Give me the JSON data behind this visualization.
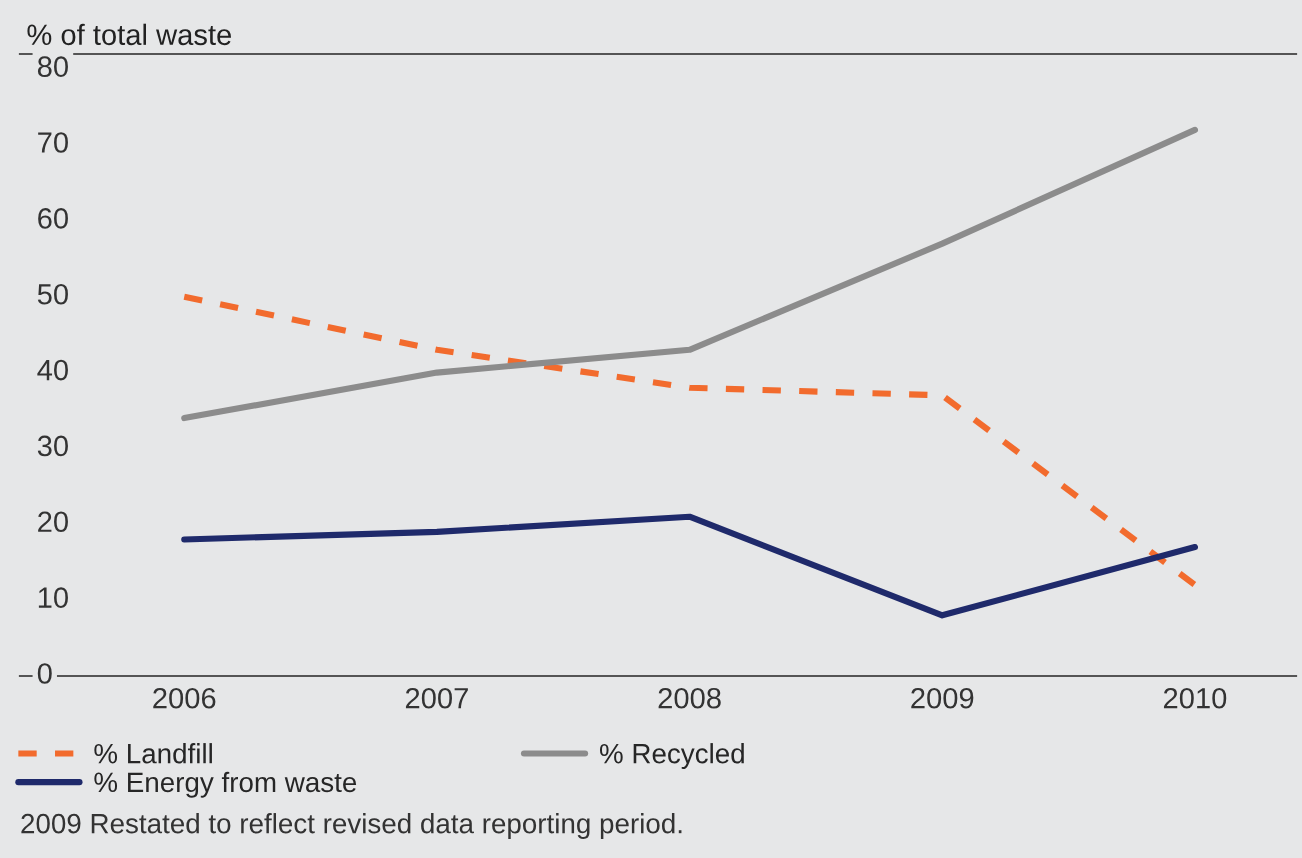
{
  "chart_data": {
    "type": "line",
    "ylabel": "% of total waste",
    "categories": [
      "2006",
      "2007",
      "2008",
      "2009",
      "2010"
    ],
    "series": [
      {
        "name": "% Landfill",
        "color": "#f26b2d",
        "line_style": "dashed",
        "values": [
          50,
          43,
          38,
          37,
          12
        ]
      },
      {
        "name": "% Recycled",
        "color": "#8c8c8c",
        "line_style": "solid",
        "values": [
          34,
          40,
          43,
          57,
          72
        ]
      },
      {
        "name": "% Energy from waste",
        "color": "#1f2a6b",
        "line_style": "solid",
        "values": [
          18,
          19,
          21,
          8,
          17
        ]
      }
    ],
    "ylim": [
      0,
      82
    ],
    "yticks": [
      0,
      10,
      20,
      30,
      40,
      50,
      60,
      70,
      80
    ],
    "grid": false,
    "legend": "bottom left",
    "marker": "none",
    "annotations": [
      "2009 Restated to reflect revised data reporting period."
    ]
  }
}
